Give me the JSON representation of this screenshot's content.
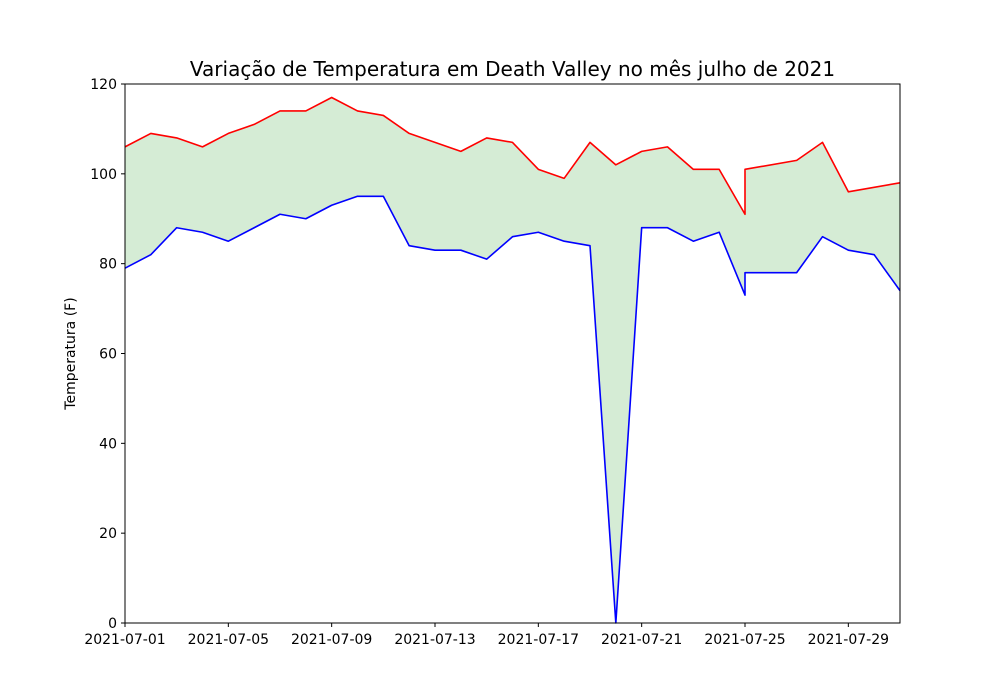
{
  "chart_data": {
    "type": "line",
    "title": "Variação de Temperatura em Death Valley no mês julho de 2021",
    "xlabel": "",
    "ylabel": "Temperatura (F)",
    "ylim": [
      0,
      120
    ],
    "xlim": [
      "2021-07-01",
      "2021-07-31"
    ],
    "y_ticks": [
      "0",
      "20",
      "40",
      "60",
      "80",
      "100",
      "120"
    ],
    "x_ticks": [
      "2021-07-01",
      "2021-07-05",
      "2021-07-09",
      "2021-07-13",
      "2021-07-17",
      "2021-07-21",
      "2021-07-25",
      "2021-07-29"
    ],
    "grid": false,
    "fill_between": {
      "color": "#2ca02c",
      "alpha": 0.2
    },
    "series": [
      {
        "color": "#ff0000",
        "points": [
          [
            "2021-07-01",
            106
          ],
          [
            "2021-07-02",
            109
          ],
          [
            "2021-07-03",
            108
          ],
          [
            "2021-07-04",
            106
          ],
          [
            "2021-07-05",
            109
          ],
          [
            "2021-07-06",
            111
          ],
          [
            "2021-07-07",
            114
          ],
          [
            "2021-07-08",
            114
          ],
          [
            "2021-07-09",
            117
          ],
          [
            "2021-07-10",
            114
          ],
          [
            "2021-07-11",
            113
          ],
          [
            "2021-07-12",
            109
          ],
          [
            "2021-07-13",
            107
          ],
          [
            "2021-07-14",
            105
          ],
          [
            "2021-07-15",
            108
          ],
          [
            "2021-07-16",
            107
          ],
          [
            "2021-07-17",
            101
          ],
          [
            "2021-07-18",
            99
          ],
          [
            "2021-07-19",
            107
          ],
          [
            "2021-07-20",
            102
          ],
          [
            "2021-07-21",
            105
          ],
          [
            "2021-07-22",
            106
          ],
          [
            "2021-07-23",
            101
          ],
          [
            "2021-07-24",
            101
          ],
          [
            "2021-07-25",
            91
          ],
          [
            "2021-07-25",
            101
          ],
          [
            "2021-07-27",
            103
          ],
          [
            "2021-07-28",
            107
          ],
          [
            "2021-07-29",
            96
          ],
          [
            "2021-07-31",
            98
          ]
        ]
      },
      {
        "color": "#0000ff",
        "points": [
          [
            "2021-07-01",
            79
          ],
          [
            "2021-07-02",
            82
          ],
          [
            "2021-07-03",
            88
          ],
          [
            "2021-07-04",
            87
          ],
          [
            "2021-07-05",
            85
          ],
          [
            "2021-07-06",
            88
          ],
          [
            "2021-07-07",
            91
          ],
          [
            "2021-07-08",
            90
          ],
          [
            "2021-07-09",
            93
          ],
          [
            "2021-07-10",
            95
          ],
          [
            "2021-07-11",
            95
          ],
          [
            "2021-07-12",
            84
          ],
          [
            "2021-07-13",
            83
          ],
          [
            "2021-07-14",
            83
          ],
          [
            "2021-07-15",
            81
          ],
          [
            "2021-07-16",
            86
          ],
          [
            "2021-07-17",
            87
          ],
          [
            "2021-07-18",
            85
          ],
          [
            "2021-07-19",
            84
          ],
          [
            "2021-07-20",
            0
          ],
          [
            "2021-07-21",
            88
          ],
          [
            "2021-07-22",
            88
          ],
          [
            "2021-07-23",
            85
          ],
          [
            "2021-07-24",
            87
          ],
          [
            "2021-07-25",
            73
          ],
          [
            "2021-07-25",
            78
          ],
          [
            "2021-07-27",
            78
          ],
          [
            "2021-07-28",
            86
          ],
          [
            "2021-07-29",
            83
          ],
          [
            "2021-07-30",
            82
          ],
          [
            "2021-07-31",
            74
          ]
        ]
      }
    ]
  }
}
